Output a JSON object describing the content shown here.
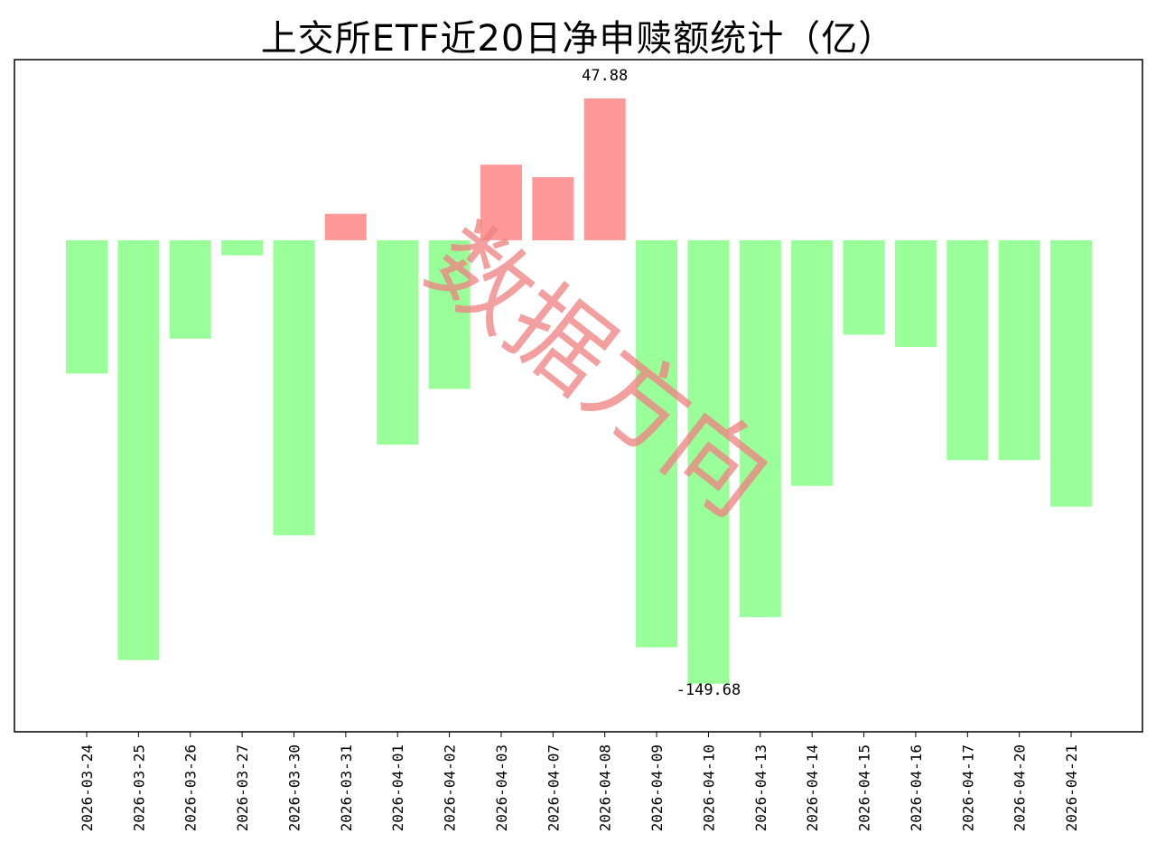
{
  "chart_data": {
    "type": "bar",
    "title": "上交所ETF近20日净申赎额统计（亿）",
    "categories": [
      "2026-03-24",
      "2026-03-25",
      "2026-03-26",
      "2026-03-27",
      "2026-03-30",
      "2026-03-31",
      "2026-04-01",
      "2026-04-02",
      "2026-04-03",
      "2026-04-07",
      "2026-04-08",
      "2026-04-09",
      "2026-04-10",
      "2026-04-13",
      "2026-04-14",
      "2026-04-15",
      "2026-04-16",
      "2026-04-17",
      "2026-04-20",
      "2026-04-21"
    ],
    "values": [
      -45.0,
      -141.7,
      -33.2,
      -5.1,
      -99.6,
      8.9,
      -69.0,
      -50.2,
      25.5,
      21.3,
      47.88,
      -137.4,
      -149.68,
      -127.2,
      -82.9,
      -31.9,
      -36.0,
      -74.2,
      -74.2,
      -89.9
    ],
    "data_labels": [
      {
        "category": "2026-04-08",
        "text": "47.88"
      },
      {
        "category": "2026-04-10",
        "text": "-149.68"
      }
    ],
    "ylim": [
      -165.9,
      60.96
    ],
    "grid": false,
    "xlabel": "",
    "ylabel": "",
    "colors": {
      "positive": "#ff9999",
      "negative": "#99ff99"
    }
  },
  "watermark": "数据方向"
}
